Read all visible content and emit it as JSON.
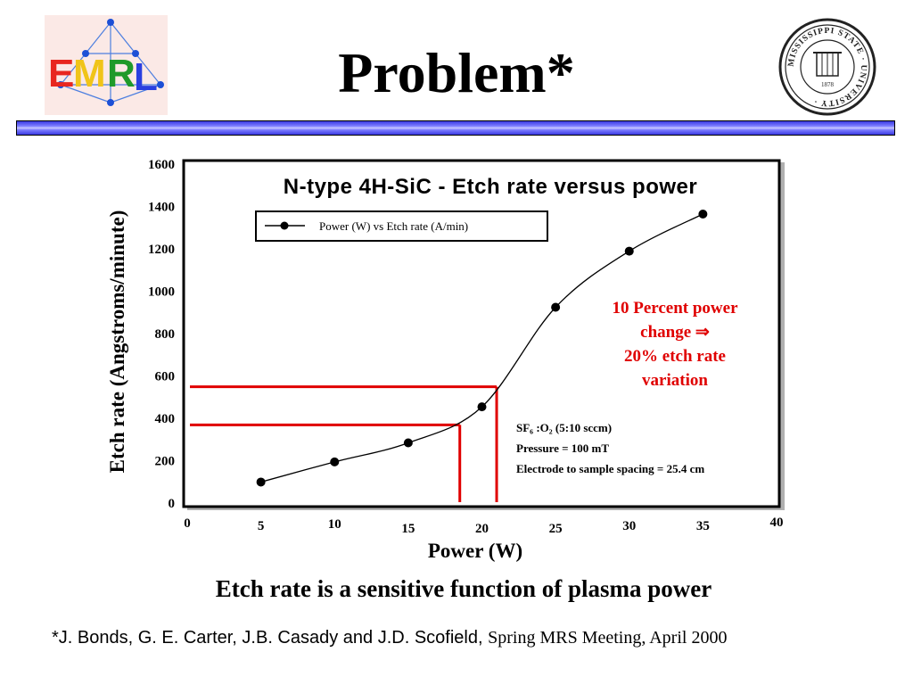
{
  "slide": {
    "title": "Problem*",
    "caption": "Etch rate is a sensitive function of plasma power",
    "reference_authors": "*J. Bonds, G. E. Carter, J.B. Casady and J.D. Scofield, ",
    "reference_venue": "Spring MRS Meeting, April 2000",
    "logo_left_text": "EMRL",
    "seal_text": "MISSISSIPPI STATE UNIVERSITY · LEARNING · SERVICE · RESEARCH · 1878",
    "band_color": "#5a5af0"
  },
  "chart_data": {
    "type": "line",
    "title": "N-type 4H-SiC - Etch rate versus power",
    "xlabel": "Power (W)",
    "ylabel": "Etch rate (Angstroms/minute)",
    "xlim": [
      0,
      40
    ],
    "ylim": [
      0,
      1600
    ],
    "x_ticks": [
      "0",
      "5",
      "10",
      "15",
      "20",
      "25",
      "30",
      "35",
      "40"
    ],
    "y_ticks": [
      "0",
      "200",
      "400",
      "600",
      "800",
      "1000",
      "1200",
      "1400",
      "1600"
    ],
    "series": [
      {
        "name": "Power (W) vs Etch rate (A/min)",
        "x": [
          5,
          10,
          15,
          20,
          25,
          30,
          35
        ],
        "y": [
          95,
          190,
          280,
          450,
          920,
          1185,
          1360
        ]
      }
    ],
    "annotation": {
      "lines": [
        "10 Percent power",
        "change ⇒",
        "20% etch rate",
        "variation"
      ],
      "color": "#e00000"
    },
    "conditions": [
      "SF₆ :O₂ (5:10 sccm)",
      "Pressure = 100 mT",
      "Electrode to sample spacing = 25.4 cm"
    ],
    "guide_lines": [
      {
        "power": 18.5,
        "etch_rate": 365
      },
      {
        "power": 21.0,
        "etch_rate": 545
      }
    ],
    "guide_color": "#e00000"
  }
}
